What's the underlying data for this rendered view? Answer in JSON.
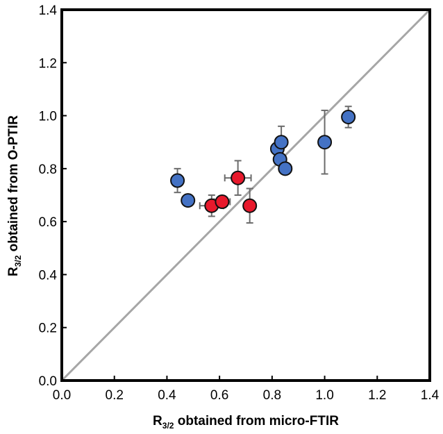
{
  "chart_data": {
    "type": "scatter",
    "title": "",
    "xlabel": {
      "main": "R",
      "sub": "3/2",
      "rest": " obtained from micro-FTIR"
    },
    "ylabel": {
      "main": "R",
      "sub": "3/2",
      "rest": " obtained from O-PTIR"
    },
    "xlim": [
      0.0,
      1.4
    ],
    "ylim": [
      0.0,
      1.4
    ],
    "xticks": [
      "0.0",
      "0.2",
      "0.4",
      "0.6",
      "0.8",
      "1.0",
      "1.2",
      "1.4"
    ],
    "yticks": [
      "0.0",
      "0.2",
      "0.4",
      "0.6",
      "0.8",
      "1.0",
      "1.2",
      "1.4"
    ],
    "grid": false,
    "reference_line": {
      "type": "y=x",
      "color": "#a6a6a6"
    },
    "series": [
      {
        "name": "blue",
        "color": "#4472c4",
        "points": [
          {
            "x": 0.44,
            "y": 0.755,
            "yerr": 0.045
          },
          {
            "x": 0.48,
            "y": 0.68
          },
          {
            "x": 0.82,
            "y": 0.875
          },
          {
            "x": 0.835,
            "y": 0.9,
            "yerr": 0.06
          },
          {
            "x": 0.83,
            "y": 0.835
          },
          {
            "x": 0.85,
            "y": 0.8
          },
          {
            "x": 1.0,
            "y": 0.9,
            "yerr": 0.12
          },
          {
            "x": 1.09,
            "y": 0.995,
            "yerr": 0.04
          }
        ]
      },
      {
        "name": "red",
        "color": "#e8192c",
        "points": [
          {
            "x": 0.57,
            "y": 0.66,
            "xerr": 0.045,
            "yerr": 0.04
          },
          {
            "x": 0.61,
            "y": 0.675,
            "xerr": 0.03,
            "yerr": 0.02
          },
          {
            "x": 0.67,
            "y": 0.765,
            "xerr": 0.05,
            "yerr": 0.065
          },
          {
            "x": 0.715,
            "y": 0.66,
            "yerr": 0.065
          }
        ]
      }
    ]
  }
}
